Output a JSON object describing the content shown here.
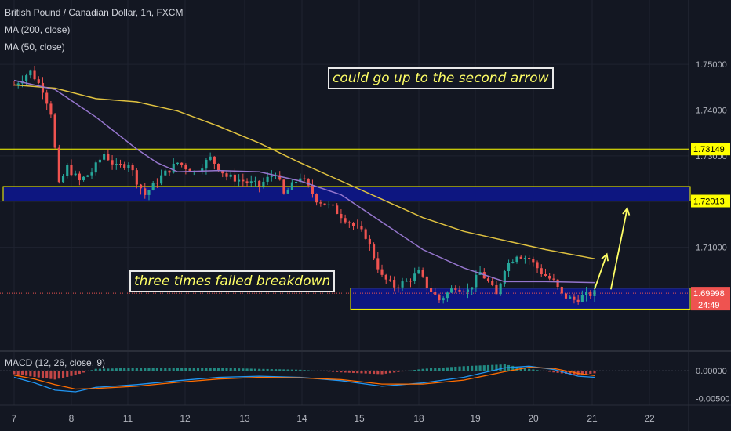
{
  "header": {
    "title": "British Pound / Canadian Dollar, 1h, FXCM",
    "ma200_label": "MA (200, close)",
    "ma50_label": "MA (50, close)",
    "macd_label": "MACD (12, 26, close, 9)"
  },
  "annotations": {
    "top_note": "could go up to the second arrow",
    "bottom_note": "three times failed breakdown"
  },
  "colors": {
    "background": "#131722",
    "grid": "#1f2330",
    "up": "#26a69a",
    "down": "#ef5350",
    "ma200": "#e0c240",
    "ma50": "#9575cd",
    "zone_fill": "#0d1680",
    "zone_border": "#ffff00",
    "arrow": "#ffff66",
    "price_badge": "#ef5350",
    "macd_line": "#2196f3",
    "signal_line": "#ff6d00"
  },
  "chart_data": {
    "type": "candlestick",
    "symbol": "GBPCAD",
    "interval": "1h",
    "x_tick_labels": [
      "7",
      "8",
      "11",
      "12",
      "13",
      "14",
      "15",
      "18",
      "19",
      "20",
      "21",
      "22"
    ],
    "price_axis": {
      "ylim": [
        1.6952,
        1.7538
      ],
      "tick_labels": [
        "1.75000",
        "1.74000",
        "1.73000",
        "1.72000",
        "1.71000"
      ],
      "tick_values": [
        1.75,
        1.74,
        1.73,
        1.72,
        1.71
      ]
    },
    "horizontal_levels": [
      {
        "value": 1.73149,
        "label": "1.73149"
      },
      {
        "value": 1.72013,
        "label": "1.72013"
      }
    ],
    "zones": [
      {
        "name": "resistance-zone",
        "low": 1.72013,
        "high": 1.7233
      },
      {
        "name": "support-zone",
        "low": 1.6965,
        "high": 1.7011
      }
    ],
    "current_price": {
      "value": 1.69998,
      "label": "1.69998",
      "countdown": "24:49"
    },
    "candles_path": [
      [
        0,
        1.7455
      ],
      [
        4,
        1.7485
      ],
      [
        7,
        1.7445
      ],
      [
        9,
        1.7395
      ],
      [
        11,
        1.7235
      ],
      [
        13,
        1.7275
      ],
      [
        16,
        1.7245
      ],
      [
        19,
        1.7265
      ],
      [
        22,
        1.7305
      ],
      [
        25,
        1.7275
      ],
      [
        28,
        1.7285
      ],
      [
        30,
        1.7245
      ],
      [
        32,
        1.7215
      ],
      [
        36,
        1.7255
      ],
      [
        40,
        1.7285
      ],
      [
        44,
        1.7265
      ],
      [
        48,
        1.7295
      ],
      [
        52,
        1.7255
      ],
      [
        56,
        1.7245
      ],
      [
        60,
        1.7235
      ],
      [
        64,
        1.7265
      ],
      [
        66,
        1.7215
      ],
      [
        70,
        1.7255
      ],
      [
        74,
        1.7205
      ],
      [
        78,
        1.7185
      ],
      [
        82,
        1.7155
      ],
      [
        86,
        1.7125
      ],
      [
        90,
        1.7035
      ],
      [
        93,
        1.7015
      ],
      [
        96,
        1.7025
      ],
      [
        99,
        1.7045
      ],
      [
        101,
        1.7015
      ],
      [
        104,
        1.6985
      ],
      [
        108,
        1.7015
      ],
      [
        111,
        1.7005
      ],
      [
        114,
        1.7045
      ],
      [
        116,
        1.7025
      ],
      [
        118,
        1.6995
      ],
      [
        120,
        1.7055
      ],
      [
        123,
        1.7085
      ],
      [
        126,
        1.7075
      ],
      [
        129,
        1.7045
      ],
      [
        132,
        1.7025
      ],
      [
        134,
        1.6995
      ],
      [
        137,
        1.6985
      ],
      [
        140,
        1.6995
      ],
      [
        142,
        1.7
      ]
    ],
    "ma200": [
      [
        0,
        1.7455
      ],
      [
        10,
        1.7448
      ],
      [
        20,
        1.7425
      ],
      [
        30,
        1.7418
      ],
      [
        40,
        1.7398
      ],
      [
        50,
        1.7365
      ],
      [
        60,
        1.7328
      ],
      [
        70,
        1.7285
      ],
      [
        80,
        1.7245
      ],
      [
        90,
        1.7205
      ],
      [
        100,
        1.7165
      ],
      [
        110,
        1.7135
      ],
      [
        120,
        1.7115
      ],
      [
        130,
        1.7095
      ],
      [
        142,
        1.7075
      ]
    ],
    "ma50": [
      [
        0,
        1.7465
      ],
      [
        10,
        1.7445
      ],
      [
        20,
        1.7385
      ],
      [
        30,
        1.7315
      ],
      [
        35,
        1.7285
      ],
      [
        40,
        1.7265
      ],
      [
        50,
        1.7268
      ],
      [
        60,
        1.7265
      ],
      [
        70,
        1.7245
      ],
      [
        80,
        1.7215
      ],
      [
        90,
        1.7155
      ],
      [
        100,
        1.7095
      ],
      [
        110,
        1.7055
      ],
      [
        120,
        1.7025
      ],
      [
        130,
        1.7025
      ],
      [
        142,
        1.7023
      ]
    ],
    "arrows": [
      {
        "from": [
          142,
          1.7008
        ],
        "to": [
          145,
          1.7085
        ]
      },
      {
        "from": [
          146,
          1.7008
        ],
        "to": [
          150,
          1.7185
        ]
      }
    ],
    "macd": {
      "ylim": [
        -0.0052,
        0.0014
      ],
      "tick_labels": [
        "0.00000",
        "-0.00500"
      ],
      "tick_values": [
        0.0,
        -0.005
      ],
      "line": [
        [
          0,
          -0.0012
        ],
        [
          5,
          -0.0022
        ],
        [
          10,
          -0.0035
        ],
        [
          15,
          -0.0038
        ],
        [
          20,
          -0.003
        ],
        [
          30,
          -0.0025
        ],
        [
          40,
          -0.0018
        ],
        [
          50,
          -0.0012
        ],
        [
          60,
          -0.001
        ],
        [
          70,
          -0.0012
        ],
        [
          80,
          -0.0018
        ],
        [
          90,
          -0.0028
        ],
        [
          100,
          -0.0022
        ],
        [
          110,
          -0.0012
        ],
        [
          120,
          0.0005
        ],
        [
          126,
          0.0008
        ],
        [
          132,
          0.0002
        ],
        [
          138,
          -0.001
        ],
        [
          142,
          -0.0012
        ]
      ],
      "signal": [
        [
          0,
          -0.0008
        ],
        [
          5,
          -0.0015
        ],
        [
          10,
          -0.0025
        ],
        [
          15,
          -0.0033
        ],
        [
          20,
          -0.0032
        ],
        [
          30,
          -0.0028
        ],
        [
          40,
          -0.0021
        ],
        [
          50,
          -0.0015
        ],
        [
          60,
          -0.0012
        ],
        [
          70,
          -0.0013
        ],
        [
          80,
          -0.0016
        ],
        [
          90,
          -0.0024
        ],
        [
          100,
          -0.0024
        ],
        [
          110,
          -0.0017
        ],
        [
          120,
          -0.0002
        ],
        [
          126,
          0.0006
        ],
        [
          132,
          0.0004
        ],
        [
          138,
          -0.0005
        ],
        [
          142,
          -0.0009
        ]
      ]
    }
  }
}
